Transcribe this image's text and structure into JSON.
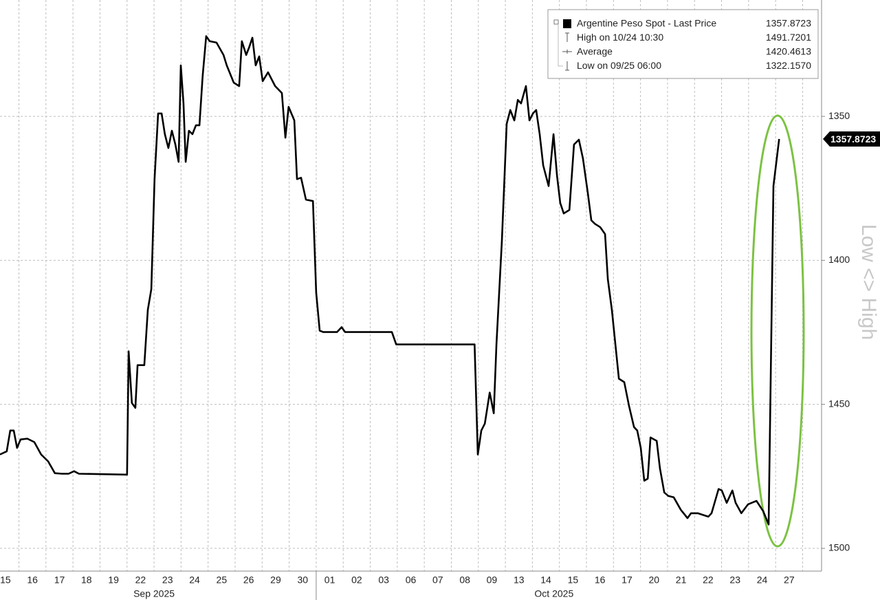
{
  "chart_data": {
    "type": "line",
    "y_label": "Low <> High",
    "categories": [
      "15",
      "16",
      "17",
      "18",
      "19",
      "22",
      "23",
      "24",
      "25",
      "26",
      "29",
      "30",
      "01",
      "02",
      "03",
      "06",
      "07",
      "08",
      "09",
      "13",
      "14",
      "15",
      "16",
      "17",
      "20",
      "21",
      "22",
      "23",
      "24",
      "27"
    ],
    "month_labels": [
      "Sep 2025",
      "Oct 2025"
    ],
    "xlim": [
      -0.2,
      30.2
    ],
    "ylim": [
      1309.6,
      1507.9
    ],
    "y_inverted": true,
    "yticks": [
      1350,
      1400,
      1450,
      1500
    ],
    "grid": true,
    "legend_position": "top-right",
    "legend": [
      {
        "label": "Argentine Peso Spot - Last Price",
        "value": 1357.8723
      },
      {
        "label": "High on 10/24 10:30",
        "value": 1491.7201
      },
      {
        "label": "Average",
        "value": 1420.4613
      },
      {
        "label": "Low on 09/25 06:00",
        "value": 1322.157,
        "value_label": "1322.1570"
      }
    ],
    "series": [
      {
        "name": "Argentine Peso Spot - Last Price",
        "color": "#000000",
        "x": [
          -0.2,
          0.05,
          0.18,
          0.31,
          0.43,
          0.56,
          0.81,
          1.07,
          1.32,
          1.58,
          1.83,
          2.09,
          2.34,
          2.54,
          2.72,
          4.5,
          4.56,
          4.68,
          4.81,
          4.89,
          5.14,
          5.27,
          5.4,
          5.52,
          5.65,
          5.78,
          5.9,
          6.03,
          6.16,
          6.29,
          6.41,
          6.49,
          6.59,
          6.67,
          6.79,
          6.92,
          7.05,
          7.18,
          7.3,
          7.43,
          7.56,
          7.81,
          8.07,
          8.19,
          8.45,
          8.65,
          8.75,
          8.91,
          9.01,
          9.14,
          9.26,
          9.39,
          9.52,
          9.72,
          9.98,
          10.23,
          10.36,
          10.48,
          10.69,
          10.79,
          10.94,
          11.12,
          11.38,
          11.5,
          11.63,
          11.76,
          12.27,
          12.44,
          12.57,
          14.3,
          14.46,
          17.36,
          17.48,
          17.61,
          17.74,
          17.92,
          18.07,
          18.17,
          18.37,
          18.55,
          18.68,
          18.83,
          18.96,
          19.08,
          19.26,
          19.39,
          19.52,
          19.64,
          19.77,
          19.9,
          20.1,
          20.28,
          20.41,
          20.53,
          20.66,
          20.87,
          21.04,
          21.22,
          21.37,
          21.55,
          21.68,
          21.81,
          22.01,
          22.19,
          22.29,
          22.44,
          22.7,
          22.9,
          23.08,
          23.26,
          23.38,
          23.51,
          23.64,
          23.77,
          23.87,
          24.1,
          24.22,
          24.38,
          24.53,
          24.73,
          24.99,
          25.24,
          25.37,
          25.62,
          26.01,
          26.13,
          26.39,
          26.51,
          26.69,
          26.9,
          27.02,
          27.23,
          27.48,
          27.79,
          28.04,
          28.24,
          28.42,
          28.63
        ],
        "values": [
          1467.4,
          1466.3,
          1459.1,
          1459.1,
          1465.1,
          1462.2,
          1461.9,
          1463.1,
          1467.4,
          1469.8,
          1473.9,
          1474.1,
          1474.1,
          1473.2,
          1474.1,
          1474.4,
          1431.6,
          1449.5,
          1451.2,
          1436.4,
          1436.4,
          1417.2,
          1410.0,
          1371.8,
          1349.0,
          1349.0,
          1356.2,
          1361.0,
          1355.0,
          1359.8,
          1365.8,
          1332.3,
          1345.5,
          1365.8,
          1355.0,
          1356.2,
          1353.1,
          1353.1,
          1335.9,
          1322.157,
          1323.9,
          1324.4,
          1328.7,
          1332.3,
          1338.3,
          1339.5,
          1323.9,
          1328.7,
          1326.3,
          1322.7,
          1332.3,
          1329.2,
          1337.8,
          1334.7,
          1339.5,
          1341.9,
          1357.4,
          1346.7,
          1351.4,
          1371.8,
          1371.3,
          1378.9,
          1379.4,
          1411.2,
          1424.4,
          1424.9,
          1424.9,
          1423.2,
          1424.9,
          1424.9,
          1429.2,
          1429.2,
          1467.4,
          1459.1,
          1456.7,
          1445.9,
          1453.1,
          1429.2,
          1393.3,
          1352.6,
          1347.8,
          1351.4,
          1344.3,
          1345.5,
          1339.5,
          1351.4,
          1349.0,
          1347.8,
          1356.2,
          1367.0,
          1374.2,
          1356.2,
          1370.6,
          1380.1,
          1383.7,
          1382.5,
          1359.8,
          1358.1,
          1364.6,
          1376.6,
          1386.1,
          1387.3,
          1388.5,
          1390.9,
          1406.5,
          1417.2,
          1441.1,
          1442.3,
          1450.7,
          1457.9,
          1459.1,
          1465.1,
          1476.5,
          1475.8,
          1461.5,
          1462.7,
          1472.2,
          1480.6,
          1481.8,
          1482.3,
          1486.6,
          1489.5,
          1487.8,
          1487.8,
          1489.0,
          1487.8,
          1479.4,
          1479.9,
          1484.2,
          1479.9,
          1484.2,
          1487.8,
          1484.7,
          1483.5,
          1487.1,
          1491.7201,
          1374.2,
          1357.8723
        ]
      }
    ]
  }
}
